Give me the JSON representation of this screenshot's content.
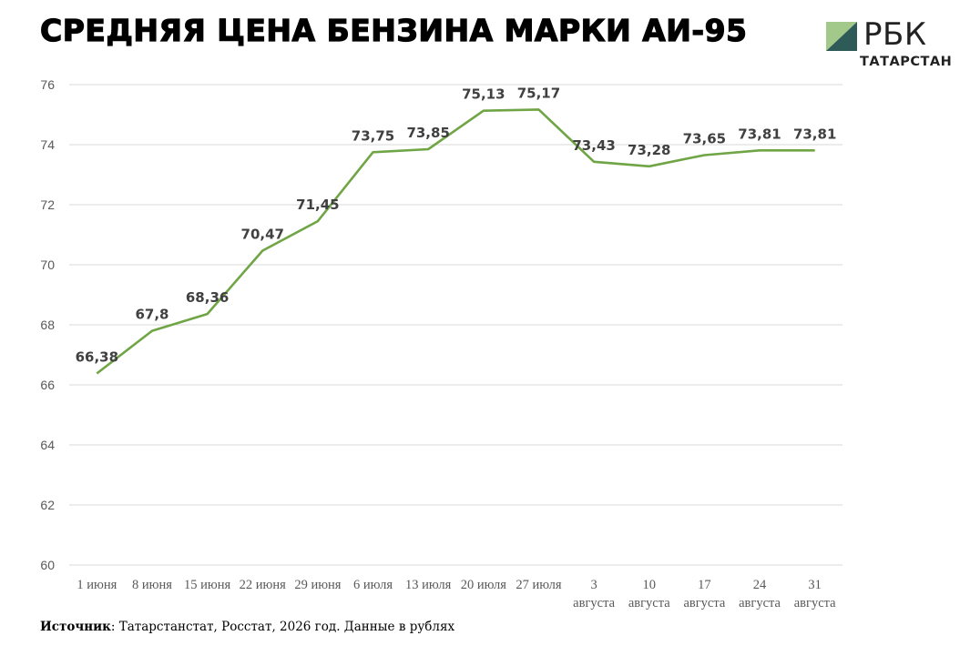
{
  "header": {
    "title": "СРЕДНЯЯ ЦЕНА БЕНЗИНА МАРКИ АИ-95"
  },
  "logo": {
    "brand": "РБК",
    "region": "ТАТАРСТАН"
  },
  "footer": {
    "source_label": "Источник",
    "source_text": ": Татарстанстат, Росстат, 2026 год. Данные в рублях"
  },
  "colors": {
    "line": "#70a545",
    "grid": "#d9d9d9",
    "axis_text": "#595959",
    "label_text": "#404040"
  },
  "chart_data": {
    "type": "line",
    "categories": [
      [
        "1 июня"
      ],
      [
        "8 июня"
      ],
      [
        "15 июня"
      ],
      [
        "22 июня"
      ],
      [
        "29 июня"
      ],
      [
        "6 июля"
      ],
      [
        "13 июля"
      ],
      [
        "20 июля"
      ],
      [
        "27 июля"
      ],
      [
        "3",
        "августа"
      ],
      [
        "10",
        "августа"
      ],
      [
        "17",
        "августа"
      ],
      [
        "24",
        "августа"
      ],
      [
        "31",
        "августа"
      ]
    ],
    "series": [
      {
        "values": [
          66.38,
          67.8,
          68.36,
          70.47,
          71.45,
          73.75,
          73.85,
          75.13,
          75.17,
          73.43,
          73.28,
          73.65,
          73.81,
          73.81
        ],
        "labels": [
          "66,38",
          "67,8",
          "68,36",
          "70,47",
          "71,45",
          "73,75",
          "73,85",
          "75,13",
          "75,17",
          "73,43",
          "73,28",
          "73,65",
          "73,81",
          "73,81"
        ]
      }
    ],
    "yticks": [
      "60",
      "62",
      "64",
      "66",
      "68",
      "70",
      "72",
      "74",
      "76"
    ],
    "ylim": [
      60,
      76
    ],
    "grid": true,
    "legend": "none"
  }
}
